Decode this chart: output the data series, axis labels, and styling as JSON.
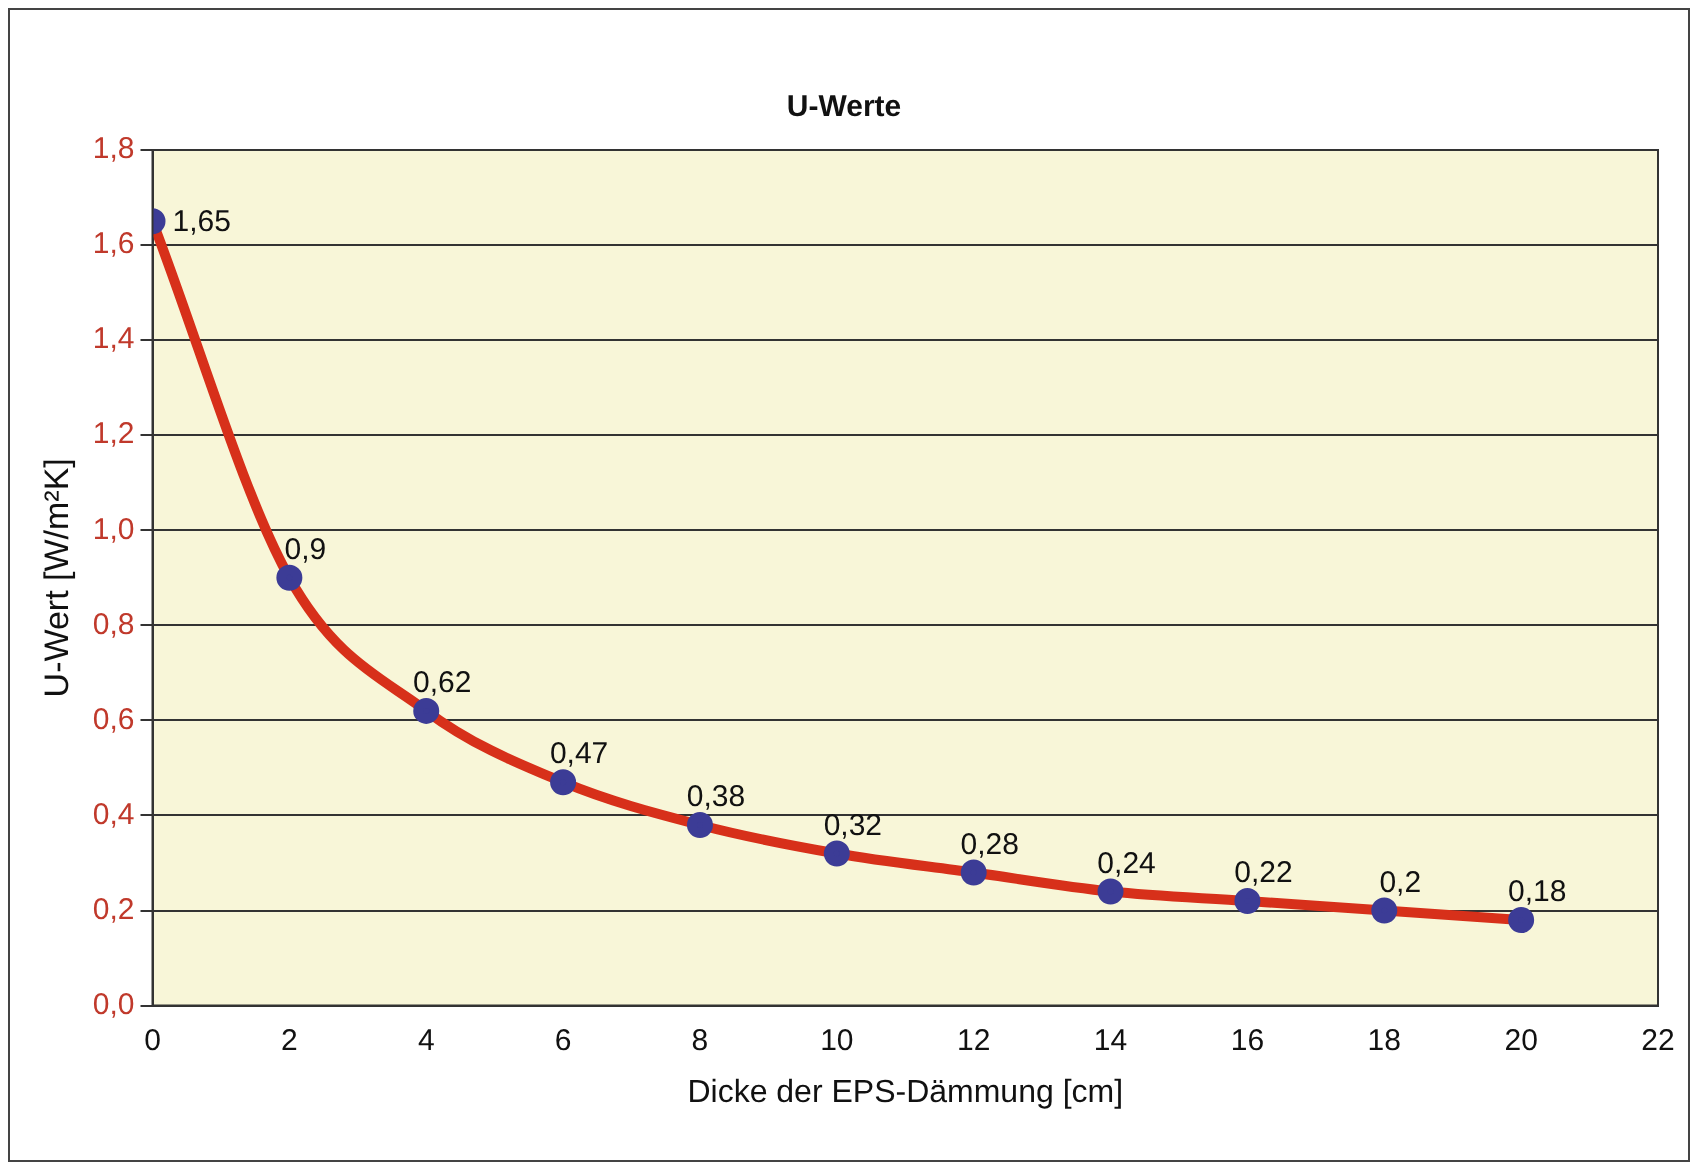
{
  "chart_data": {
    "type": "line",
    "title": "U-Werte",
    "xlabel": "Dicke der EPS-Dämmung [cm]",
    "ylabel": "U-Wert [W/m²K]",
    "x": [
      0,
      2,
      4,
      6,
      8,
      10,
      12,
      14,
      16,
      18,
      20
    ],
    "series": [
      {
        "color": "#d7301a",
        "colors": [
          "#3c3c96",
          "#3c3c96",
          "#3c3c96",
          "#3c3c96",
          "#3c3c96",
          "#3c3c96",
          "#3c3c96",
          "#3c3c96",
          "#3c3c96",
          "#3c3c96",
          "#3c3c96"
        ],
        "values": [
          1.65,
          0.9,
          0.62,
          0.47,
          0.38,
          0.32,
          0.28,
          0.24,
          0.22,
          0.2,
          0.18
        ],
        "value_labels": [
          "1,65",
          "0,9",
          "0,62",
          "0,47",
          "0,38",
          "0,32",
          "0,28",
          "0,24",
          "0,22",
          "0,2",
          "0,18"
        ]
      }
    ],
    "xlim": [
      0,
      22
    ],
    "xticks": [
      0,
      2,
      4,
      6,
      8,
      10,
      12,
      14,
      16,
      18,
      20,
      22
    ],
    "ylim": [
      0,
      1.8
    ],
    "yticks": [
      {
        "value": 0,
        "label": "0,0"
      },
      {
        "value": 0.2,
        "label": "0,2"
      },
      {
        "value": 0.4,
        "label": "0,4"
      },
      {
        "value": 0.6,
        "label": "0,6"
      },
      {
        "value": 0.8,
        "label": "0,8"
      },
      {
        "value": 1,
        "label": "1,0"
      },
      {
        "value": 1.2,
        "label": "1,2"
      },
      {
        "value": 1.4,
        "label": "1,4"
      },
      {
        "value": 1.6,
        "label": "1,6"
      },
      {
        "value": 1.8,
        "label": "1,8"
      }
    ],
    "grid": "y",
    "legend": false,
    "marker": "circle",
    "line_style": "solid"
  }
}
